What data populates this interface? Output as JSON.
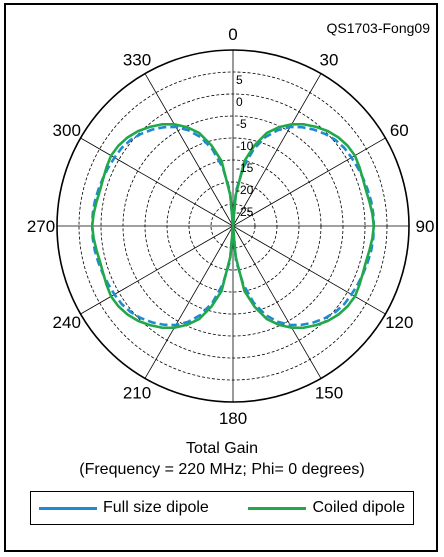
{
  "figure_id": "QS1703-Fong09",
  "chart_data": {
    "type": "polar-line",
    "title": "Total Gain",
    "subtitle": "(Frequency = 220 MHz; Phi= 0 degrees)",
    "radial_axis": {
      "min": -30,
      "max": 10,
      "ticks": [
        5,
        0,
        -5,
        -10,
        -15,
        -20,
        -25
      ],
      "tick_labels": [
        "5",
        "0",
        "-5",
        "-10",
        "-15",
        "-20",
        "-25"
      ]
    },
    "angular_axis": {
      "direction": "clockwise",
      "zero": "top",
      "ticks": [
        0,
        30,
        60,
        90,
        120,
        150,
        180,
        210,
        240,
        270,
        300,
        330
      ],
      "tick_labels": [
        "0",
        "30",
        "60",
        "90",
        "120",
        "150",
        "180",
        "210",
        "240",
        "270",
        "300",
        "330"
      ]
    },
    "grid": true,
    "legend_position": "bottom",
    "theta_deg": [
      0,
      5,
      10,
      15,
      20,
      25,
      30,
      35,
      40,
      45,
      50,
      55,
      60,
      65,
      70,
      75,
      80,
      85,
      90
    ],
    "series": [
      {
        "name": "Full size dipole",
        "color": "#1f8ad2",
        "dash": true,
        "values": [
          -30,
          -22,
          -16.5,
          -12,
          -8.5,
          -6,
          -4,
          -2.6,
          -1.4,
          -0.4,
          0.4,
          0.9,
          1.1,
          1.3,
          1.5,
          1.7,
          1.9,
          2.0,
          2.0
        ]
      },
      {
        "name": "Coiled dipole",
        "color": "#22a84a",
        "dash": false,
        "values": [
          -30,
          -23,
          -15,
          -11,
          -7.5,
          -5.2,
          -3.3,
          -1.8,
          -0.6,
          0.5,
          1.3,
          1.8,
          2.0,
          1.7,
          1.4,
          1.3,
          1.5,
          1.8,
          2.0
        ]
      }
    ]
  }
}
